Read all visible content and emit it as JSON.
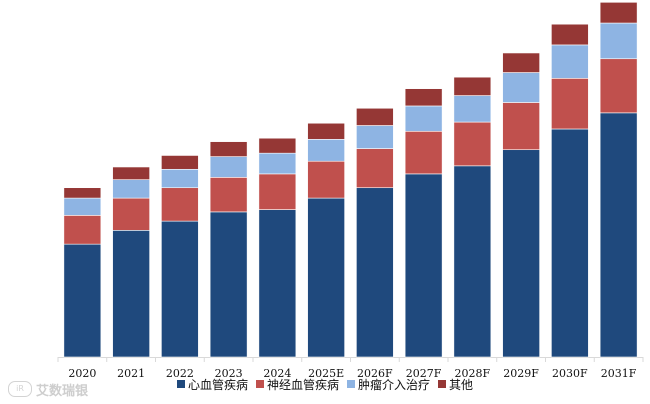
{
  "chart_data": {
    "type": "bar",
    "stacked": true,
    "title": "",
    "xlabel": "",
    "ylabel": "",
    "ylim": [
      0,
      310
    ],
    "grid": false,
    "legend_position": "bottom",
    "categories": [
      "2020",
      "2021",
      "2022",
      "2023",
      "2024",
      "2025E",
      "2026F",
      "2027F",
      "2028F",
      "2029F",
      "2030F",
      "2031F"
    ],
    "series": [
      {
        "name": "心血管疾病",
        "color": "#1f497d",
        "values": [
          98,
          110,
          118,
          126,
          128,
          138,
          147,
          159,
          166,
          180,
          198,
          212
        ]
      },
      {
        "name": "神经血管疾病",
        "color": "#c0504d",
        "values": [
          25,
          28,
          29,
          30,
          31,
          32,
          34,
          37,
          38,
          41,
          44,
          47
        ]
      },
      {
        "name": "肿瘤介入治疗",
        "color": "#8eb4e3",
        "values": [
          15,
          16,
          16,
          18,
          18,
          19,
          20,
          22,
          23,
          26,
          29,
          31
        ]
      },
      {
        "name": "其他",
        "color": "#953735",
        "values": [
          9,
          11,
          12,
          13,
          13,
          14,
          15,
          15,
          16,
          17,
          18,
          18
        ]
      }
    ]
  },
  "watermark": {
    "logo_text": "iR",
    "text": "艾数瑞银"
  }
}
